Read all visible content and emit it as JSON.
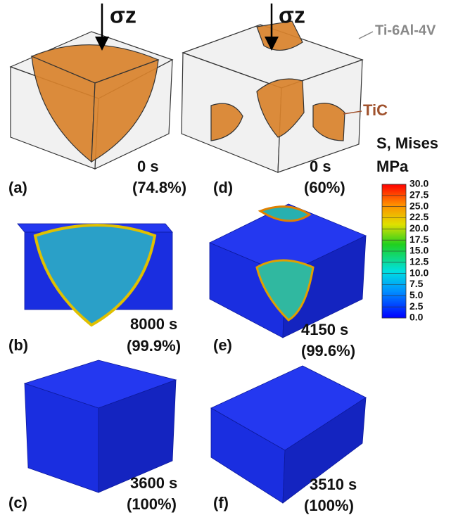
{
  "figure": {
    "load_labels": [
      "σz",
      "σz"
    ],
    "material_labels": [
      "Ti-6Al-4V",
      "TiC"
    ],
    "panels": [
      {
        "label": "(a)",
        "time": "0 s",
        "density": "(74.8%)"
      },
      {
        "label": "(b)",
        "time": "8000 s",
        "density": "(99.9%)"
      },
      {
        "label": "(c)",
        "time": "3600 s",
        "density": "(100%)"
      },
      {
        "label": "(d)",
        "time": "0 s",
        "density": "(60%)"
      },
      {
        "label": "(e)",
        "time": "4150 s",
        "density": "(99.6%)"
      },
      {
        "label": "(f)",
        "time": "3510 s",
        "density": "(100%)"
      }
    ],
    "colorbar": {
      "title": "S, Mises",
      "unit": "MPa",
      "lim": [
        0,
        30
      ],
      "ticks": [
        {
          "value": 30,
          "label": "30.0"
        },
        {
          "value": 27.5,
          "label": "27.5"
        },
        {
          "value": 25,
          "label": "25.0"
        },
        {
          "value": 22.5,
          "label": "22.5"
        },
        {
          "value": 20,
          "label": "20.0"
        },
        {
          "value": 17.5,
          "label": "17.5"
        },
        {
          "value": 15,
          "label": "15.0"
        },
        {
          "value": 12.5,
          "label": "12.5"
        },
        {
          "value": 10,
          "label": "10.0"
        },
        {
          "value": 7.5,
          "label": "7.5"
        },
        {
          "value": 5,
          "label": "5.0"
        },
        {
          "value": 2.5,
          "label": "2.5"
        },
        {
          "value": 0,
          "label": "0.0"
        }
      ]
    }
  }
}
